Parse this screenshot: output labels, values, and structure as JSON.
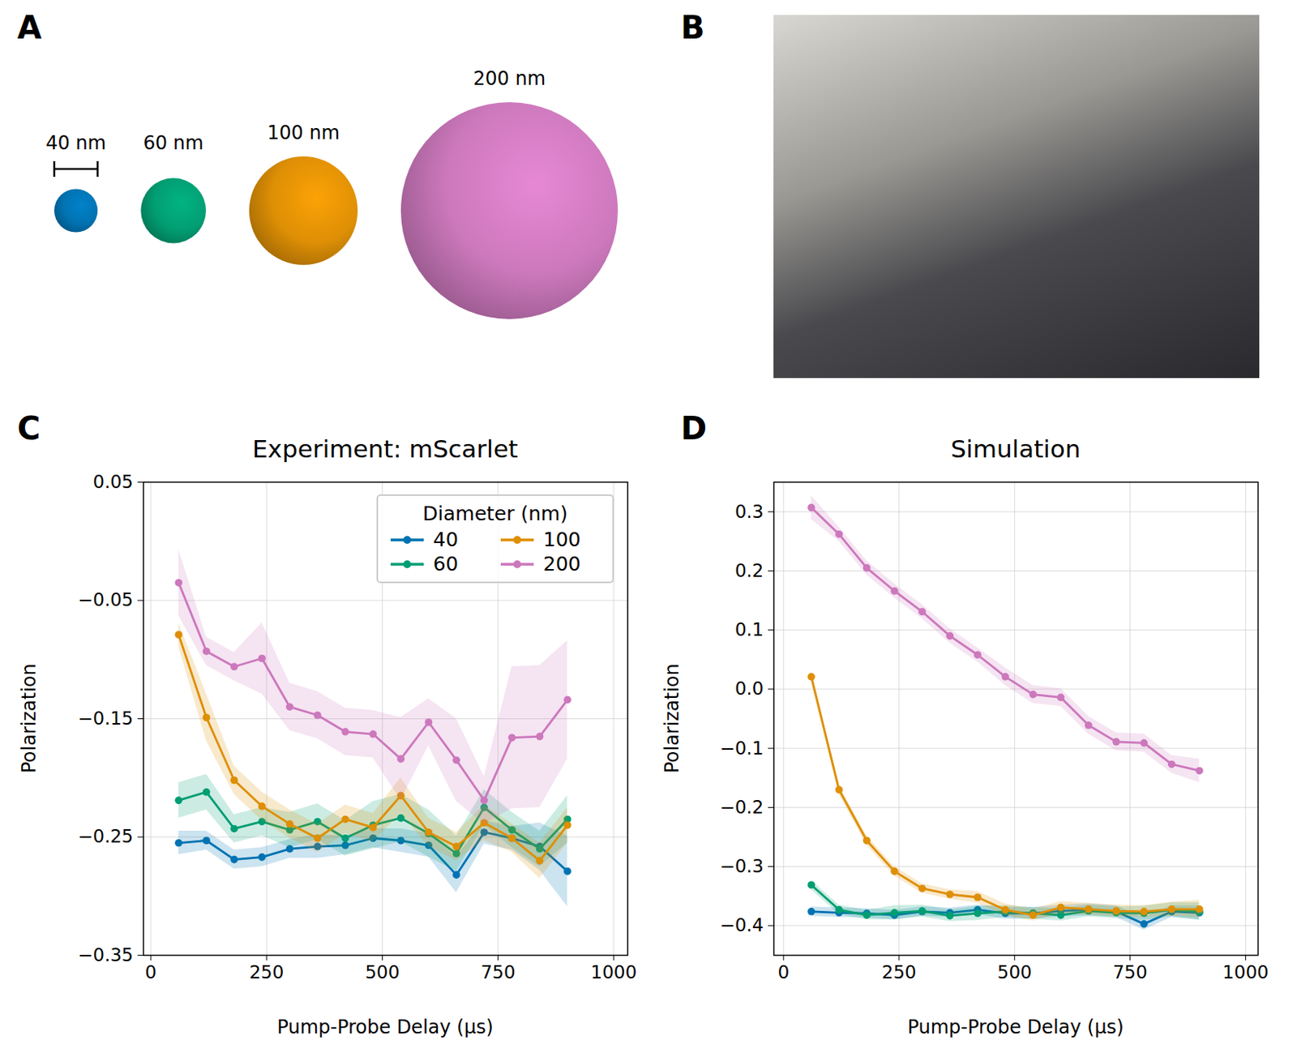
{
  "figure": {
    "panel_labels": [
      "A",
      "B",
      "C",
      "D"
    ]
  },
  "diagram": {
    "spheres": [
      {
        "label": "40 nm",
        "diameter": 40,
        "color": "#0173b2"
      },
      {
        "label": "60 nm",
        "diameter": 60,
        "color": "#029e73"
      },
      {
        "label": "100 nm",
        "diameter": 100,
        "color": "#de8f05"
      },
      {
        "label": "200 nm",
        "diameter": 200,
        "color": "#cc78bc"
      }
    ]
  },
  "chart_data": [
    {
      "type": "line",
      "title": "Experiment: mScarlet",
      "x_label": "Pump-Probe Delay (µs)",
      "y_label": "Polarization",
      "x": [
        60,
        120,
        180,
        240,
        300,
        360,
        420,
        480,
        540,
        600,
        660,
        720,
        780,
        840,
        900
      ],
      "xlim": [
        -16,
        1030
      ],
      "xticks": [
        0,
        250,
        500,
        750,
        1000
      ],
      "ylim": [
        -0.35,
        0.05
      ],
      "yticks": [
        0.05,
        -0.05,
        -0.15,
        -0.25,
        -0.35
      ],
      "grid": true,
      "marker": "o",
      "legend": "upper right",
      "legend_title": "Diameter (nm)",
      "series": [
        {
          "name": "40",
          "color": "#0173b2",
          "values": [
            -0.255,
            -0.253,
            -0.269,
            -0.267,
            -0.26,
            -0.258,
            -0.257,
            -0.251,
            -0.253,
            -0.257,
            -0.282,
            -0.246,
            -0.251,
            -0.258,
            -0.279
          ],
          "error": [
            0.01,
            0.008,
            0.008,
            0.008,
            0.008,
            0.01,
            0.008,
            0.008,
            0.01,
            0.01,
            0.015,
            0.01,
            0.01,
            0.02,
            0.03
          ]
        },
        {
          "name": "60",
          "color": "#029e73",
          "values": [
            -0.219,
            -0.212,
            -0.243,
            -0.237,
            -0.244,
            -0.237,
            -0.251,
            -0.24,
            -0.234,
            -0.247,
            -0.264,
            -0.225,
            -0.244,
            -0.26,
            -0.235
          ],
          "error": [
            0.015,
            0.015,
            0.012,
            0.012,
            0.015,
            0.015,
            0.015,
            0.02,
            0.02,
            0.02,
            0.015,
            0.015,
            0.015,
            0.015,
            0.02
          ]
        },
        {
          "name": "100",
          "color": "#de8f05",
          "values": [
            -0.079,
            -0.149,
            -0.202,
            -0.224,
            -0.239,
            -0.251,
            -0.235,
            -0.242,
            -0.215,
            -0.246,
            -0.258,
            -0.238,
            -0.251,
            -0.27,
            -0.24
          ],
          "error": [
            0.01,
            0.02,
            0.012,
            0.012,
            0.012,
            0.012,
            0.012,
            0.012,
            0.015,
            0.012,
            0.012,
            0.015,
            0.012,
            0.015,
            0.015
          ]
        },
        {
          "name": "200",
          "color": "#cc78bc",
          "values": [
            -0.035,
            -0.093,
            -0.106,
            -0.099,
            -0.14,
            -0.147,
            -0.161,
            -0.163,
            -0.184,
            -0.153,
            -0.185,
            -0.219,
            -0.166,
            -0.165,
            -0.134
          ],
          "error": [
            0.028,
            0.012,
            0.012,
            0.03,
            0.02,
            0.02,
            0.02,
            0.02,
            0.035,
            0.02,
            0.035,
            0.02,
            0.06,
            0.06,
            0.05
          ]
        }
      ]
    },
    {
      "type": "line",
      "title": "Simulation",
      "x_label": "Pump-Probe Delay (µs)",
      "y_label": "Polarization",
      "x": [
        60,
        120,
        180,
        240,
        300,
        360,
        420,
        480,
        540,
        600,
        660,
        720,
        780,
        840,
        900
      ],
      "xlim": [
        -21,
        1027
      ],
      "xticks": [
        0,
        250,
        500,
        750,
        1000
      ],
      "ylim": [
        -0.45,
        0.35
      ],
      "yticks": [
        -0.4,
        -0.3,
        -0.2,
        -0.1,
        {
          "value": 0,
          "label": "0.0"
        },
        0.1,
        0.2,
        0.3
      ],
      "grid": true,
      "marker": "o",
      "series": [
        {
          "name": "40",
          "color": "#0173b2",
          "values": [
            -0.376,
            -0.378,
            -0.379,
            -0.382,
            -0.376,
            -0.378,
            -0.373,
            -0.379,
            -0.379,
            -0.375,
            -0.373,
            -0.376,
            -0.397,
            -0.376,
            -0.378
          ],
          "error": [
            0.008,
            0.008,
            0.008,
            0.008,
            0.008,
            0.008,
            0.008,
            0.01,
            0.01,
            0.01,
            0.01,
            0.01,
            0.01,
            0.01,
            0.012
          ]
        },
        {
          "name": "60",
          "color": "#029e73",
          "values": [
            -0.331,
            -0.373,
            -0.382,
            -0.378,
            -0.375,
            -0.383,
            -0.379,
            -0.376,
            -0.379,
            -0.382,
            -0.375,
            -0.378,
            -0.379,
            -0.373,
            -0.376
          ],
          "error": [
            0.008,
            0.008,
            0.008,
            0.012,
            0.01,
            0.01,
            0.012,
            0.01,
            0.01,
            0.01,
            0.01,
            0.01,
            0.012,
            0.012,
            0.015
          ]
        },
        {
          "name": "100",
          "color": "#de8f05",
          "values": [
            0.021,
            -0.17,
            -0.256,
            -0.308,
            -0.337,
            -0.347,
            -0.352,
            -0.373,
            -0.382,
            -0.369,
            -0.372,
            -0.375,
            -0.376,
            -0.372,
            -0.372
          ],
          "error": [
            0.008,
            0.008,
            0.008,
            0.008,
            0.008,
            0.008,
            0.01,
            0.01,
            0.01,
            0.01,
            0.01,
            0.01,
            0.01,
            0.012,
            0.015
          ]
        },
        {
          "name": "200",
          "color": "#cc78bc",
          "values": [
            0.307,
            0.262,
            0.205,
            0.166,
            0.131,
            0.09,
            0.058,
            0.021,
            -0.009,
            -0.014,
            -0.061,
            -0.089,
            -0.091,
            -0.127,
            -0.138
          ],
          "error": [
            0.02,
            0.012,
            0.012,
            0.012,
            0.012,
            0.012,
            0.012,
            0.015,
            0.015,
            0.015,
            0.015,
            0.015,
            0.015,
            0.015,
            0.02
          ]
        }
      ]
    }
  ]
}
